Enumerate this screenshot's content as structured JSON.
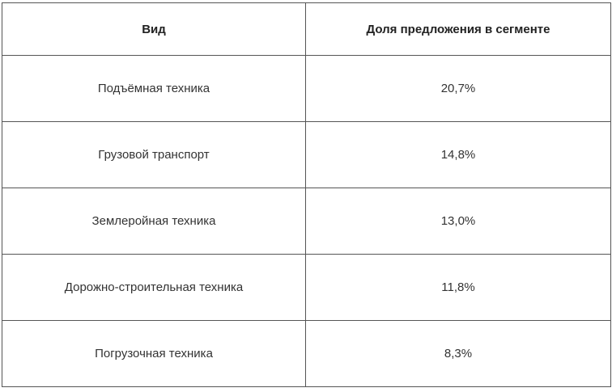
{
  "table": {
    "headers": [
      "Вид",
      "Доля предложения в сегменте"
    ],
    "rows": [
      [
        "Подъёмная техника",
        "20,7%"
      ],
      [
        "Грузовой транспорт",
        "14,8%"
      ],
      [
        "Землеройная техника",
        "13,0%"
      ],
      [
        "Дорожно-строительная техника",
        "11,8%"
      ],
      [
        "Погрузочная техника",
        "8,3%"
      ]
    ]
  }
}
